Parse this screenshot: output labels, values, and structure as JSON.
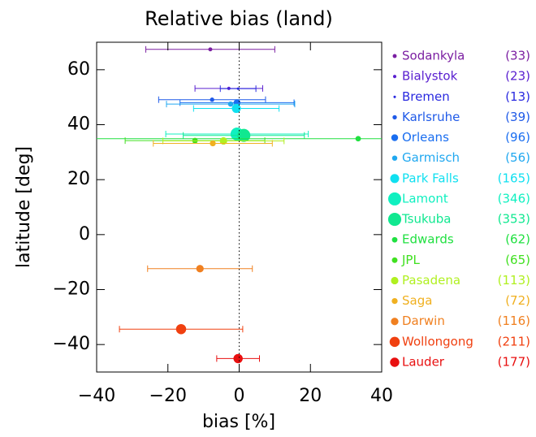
{
  "chart_data": {
    "type": "scatter",
    "title": "Relative bias (land)",
    "x_label": "bias [%]",
    "y_label": "latitude [deg]",
    "xlim": [
      -40,
      40
    ],
    "ylim": [
      -50,
      70
    ],
    "xticks": [
      {
        "value": -40,
        "label": "−40"
      },
      {
        "value": -20,
        "label": "−20"
      },
      0,
      20,
      40
    ],
    "yticks": [
      {
        "value": -40,
        "label": "−40"
      },
      {
        "value": -20,
        "label": "−20"
      },
      0,
      20,
      40,
      60
    ],
    "reference_x": 0,
    "series": [
      {
        "name": "Sodankyla",
        "color": "#7b1fa2",
        "lat": 67.4,
        "bias": -8.1,
        "error": 18.1,
        "n": 33,
        "n_label": "(33)"
      },
      {
        "name": "Bialystok",
        "color": "#5a20d0",
        "lat": 53.2,
        "bias": -2.9,
        "error": 9.5,
        "n": 23,
        "n_label": "(23)"
      },
      {
        "name": "Bremen",
        "color": "#2a2ae0",
        "lat": 53.1,
        "bias": -0.3,
        "error": 5,
        "n": 13,
        "n_label": "(13)"
      },
      {
        "name": "Karlsruhe",
        "color": "#1f5ae8",
        "lat": 49.1,
        "bias": -7.6,
        "error": 15,
        "n": 39,
        "n_label": "(39)"
      },
      {
        "name": "Orleans",
        "color": "#1a6ef0",
        "lat": 48,
        "bias": -0.6,
        "error": 16,
        "n": 96,
        "n_label": "(96)"
      },
      {
        "name": "Garmisch",
        "color": "#20a8f0",
        "lat": 47.5,
        "bias": -2.4,
        "error": 18,
        "n": 56,
        "n_label": "(56)"
      },
      {
        "name": "Park Falls",
        "color": "#10e0f0",
        "lat": 45.9,
        "bias": -0.8,
        "error": 12,
        "n": 165,
        "n_label": "(165)"
      },
      {
        "name": "Lamont",
        "color": "#10f0c0",
        "lat": 36.6,
        "bias": -0.6,
        "error": 20,
        "n": 346,
        "n_label": "(346)"
      },
      {
        "name": "Tsukuba",
        "color": "#10e890",
        "lat": 36.1,
        "bias": 1.3,
        "error": 17,
        "n": 353,
        "n_label": "(353)"
      },
      {
        "name": "Edwards",
        "color": "#20e040",
        "lat": 34.9,
        "bias": 33.4,
        "error": 80,
        "n": 62,
        "n_label": "(62)"
      },
      {
        "name": "JPL",
        "color": "#40e020",
        "lat": 34.2,
        "bias": -12.4,
        "error": 19.6,
        "n": 65,
        "n_label": "(65)"
      },
      {
        "name": "Pasadena",
        "color": "#b0f020",
        "lat": 34.1,
        "bias": -4.4,
        "error": 17,
        "n": 113,
        "n_label": "(113)"
      },
      {
        "name": "Saga",
        "color": "#f0b020",
        "lat": 33.2,
        "bias": -7.4,
        "error": 16.7,
        "n": 72,
        "n_label": "(72)"
      },
      {
        "name": "Darwin",
        "color": "#f08020",
        "lat": -12.4,
        "bias": -11,
        "error": 14.7,
        "n": 116,
        "n_label": "(116)"
      },
      {
        "name": "Wollongong",
        "color": "#f04010",
        "lat": -34.4,
        "bias": -16.3,
        "error": 17.3,
        "n": 211,
        "n_label": "(211)"
      },
      {
        "name": "Lauder",
        "color": "#e81010",
        "lat": -45.1,
        "bias": -0.3,
        "error": 6,
        "n": 177,
        "n_label": "(177)"
      }
    ]
  }
}
